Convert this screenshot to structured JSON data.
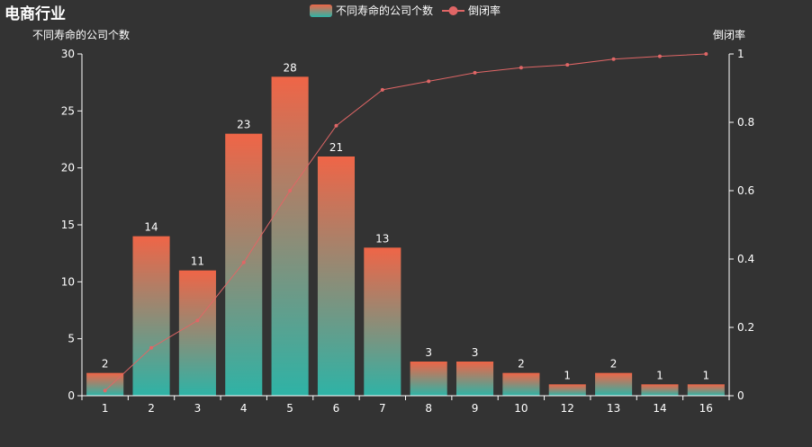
{
  "title": "电商行业",
  "legend": {
    "bar_label": "不同寿命的公司个数",
    "line_label": "倒闭率"
  },
  "colors": {
    "background": "#333333",
    "bar_top": "#ef6547",
    "bar_bottom": "#2eb3a6",
    "line": "#e06666",
    "text": "#ffffff"
  },
  "chart_data": {
    "type": "bar",
    "title": "电商行业",
    "categories": [
      "1",
      "2",
      "3",
      "4",
      "5",
      "6",
      "7",
      "8",
      "9",
      "10",
      "12",
      "13",
      "14",
      "16"
    ],
    "series": [
      {
        "name": "不同寿命的公司个数",
        "type": "bar",
        "axis": "left",
        "values": [
          2,
          14,
          11,
          23,
          28,
          21,
          13,
          3,
          3,
          2,
          1,
          2,
          1,
          1
        ]
      },
      {
        "name": "倒闭率",
        "type": "line",
        "axis": "right",
        "values": [
          0.015,
          0.14,
          0.22,
          0.39,
          0.6,
          0.79,
          0.895,
          0.92,
          0.945,
          0.96,
          0.968,
          0.985,
          0.993,
          1.0
        ]
      }
    ],
    "ylabel_left": "不同寿命的公司个数",
    "ylabel_right": "倒闭率",
    "ylim_left": [
      0,
      30
    ],
    "ylim_right": [
      0,
      1
    ],
    "yticks_left": [
      "0",
      "5",
      "10",
      "15",
      "20",
      "25",
      "30"
    ],
    "yticks_right": [
      "0",
      "0.2",
      "0.4",
      "0.6",
      "0.8",
      "1"
    ],
    "grid": false,
    "legend_position": "top-center"
  }
}
